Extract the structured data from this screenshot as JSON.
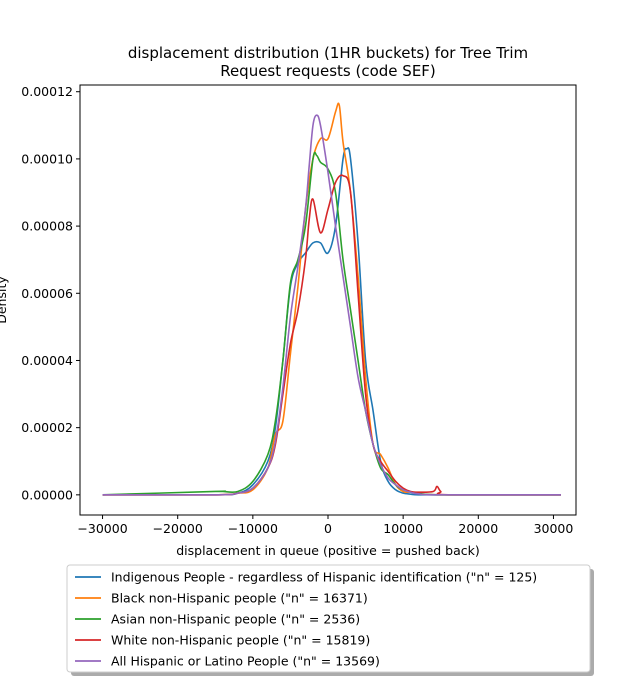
{
  "chart_data": {
    "type": "line",
    "title_line1": "displacement distribution (1HR buckets) for Tree Trim",
    "title_line2": "Request requests (code SEF)",
    "xlabel": "displacement in queue (positive = pushed back)",
    "ylabel": "Density",
    "xlim": [
      -33000,
      33000
    ],
    "ylim": [
      -6e-06,
      0.000122
    ],
    "xticks": [
      -30000,
      -20000,
      -10000,
      0,
      10000,
      20000,
      30000
    ],
    "xtick_labels": [
      "−30000",
      "−20000",
      "−10000",
      "0",
      "10000",
      "20000",
      "30000"
    ],
    "yticks": [
      0,
      2e-05,
      4e-05,
      6e-05,
      8e-05,
      0.0001,
      0.00012
    ],
    "ytick_labels": [
      "0.00000",
      "0.00002",
      "0.00004",
      "0.00006",
      "0.00008",
      "0.00010",
      "0.00012"
    ],
    "legend_position": "below the axes",
    "series": [
      {
        "name": "Indigenous People - regardless of Hispanic identification (\"n\" = 125)",
        "color": "#1f77b4",
        "x": [
          -30000,
          -15000,
          -12000,
          -10000,
          -8000,
          -7000,
          -6000,
          -5000,
          -4000,
          -3000,
          -2000,
          -1000,
          0,
          1000,
          2000,
          2500,
          3000,
          4000,
          5000,
          6000,
          7000,
          8000,
          9000,
          10000,
          11000,
          12000,
          15000,
          31000
        ],
        "y": [
          0,
          0,
          5e-07,
          3e-06,
          1e-05,
          2e-05,
          4e-05,
          6.2e-05,
          6.9e-05,
          7.2e-05,
          7.5e-05,
          7.5e-05,
          7.2e-05,
          8e-05,
          0.0001,
          0.000103,
          0.0001,
          7.5e-05,
          4e-05,
          2.5e-05,
          1e-05,
          4e-06,
          1.5e-06,
          5e-07,
          2e-07,
          0,
          0,
          0
        ]
      },
      {
        "name": "Black non-Hispanic people (\"n\" = 16371)",
        "color": "#ff7f0e",
        "x": [
          -30000,
          -15000,
          -12000,
          -10000,
          -8000,
          -7000,
          -6000,
          -5000,
          -4000,
          -3000,
          -2000,
          -1000,
          0,
          1000,
          1500,
          2000,
          3000,
          4000,
          5000,
          6000,
          7000,
          8000,
          9000,
          10000,
          11000,
          12000,
          15000,
          31000
        ],
        "y": [
          0,
          0,
          5e-07,
          1.5e-06,
          8e-06,
          1.8e-05,
          2.2e-05,
          4.2e-05,
          6.2e-05,
          8.5e-05,
          0.0001,
          0.000106,
          0.000106,
          0.000114,
          0.000116,
          0.000105,
          9e-05,
          6.5e-05,
          3.5e-05,
          1.5e-05,
          1.2e-05,
          8e-06,
          3e-06,
          1e-06,
          8e-07,
          5e-07,
          0,
          0
        ]
      },
      {
        "name": "Asian non-Hispanic people (\"n\" = 2536)",
        "color": "#2ca02c",
        "x": [
          -30000,
          -15000,
          -14000,
          -12000,
          -10000,
          -8000,
          -7000,
          -6000,
          -5000,
          -4000,
          -3000,
          -2000,
          -1500,
          -1000,
          0,
          1000,
          2000,
          3000,
          4000,
          5000,
          6000,
          7000,
          8000,
          9000,
          10000,
          12000,
          15000,
          31000
        ],
        "y": [
          0,
          1e-06,
          1e-06,
          1e-06,
          4e-06,
          1.2e-05,
          2.2e-05,
          4e-05,
          6.3e-05,
          7e-05,
          8e-05,
          0.0001,
          0.000101,
          9.9e-05,
          9.7e-05,
          9e-05,
          7e-05,
          5.5e-05,
          4e-05,
          2.5e-05,
          1.5e-05,
          8e-06,
          6e-06,
          3e-06,
          1.5e-06,
          5e-07,
          0,
          0
        ]
      },
      {
        "name": "White non-Hispanic people (\"n\" = 15819)",
        "color": "#d62728",
        "x": [
          -30000,
          -15000,
          -12000,
          -10000,
          -8000,
          -7000,
          -6000,
          -5000,
          -4000,
          -3000,
          -2500,
          -2000,
          -1000,
          0,
          1000,
          2000,
          3000,
          4000,
          5000,
          6000,
          7000,
          8000,
          9000,
          10000,
          11000,
          12000,
          14000,
          14500,
          15000,
          16000,
          31000
        ],
        "y": [
          0,
          0,
          5e-07,
          2e-06,
          8e-06,
          1.5e-05,
          3e-05,
          4.5e-05,
          5.5e-05,
          7e-05,
          8.2e-05,
          8.8e-05,
          7.8e-05,
          8.5e-05,
          9.3e-05,
          9.5e-05,
          9e-05,
          6e-05,
          3e-05,
          1.5e-05,
          1e-05,
          7e-06,
          4e-06,
          2e-06,
          1e-06,
          8e-07,
          1e-06,
          2.5e-06,
          1e-06,
          0,
          0
        ]
      },
      {
        "name": "All Hispanic or Latino People (\"n\" = 13569)",
        "color": "#9467bd",
        "x": [
          -30000,
          -15000,
          -12000,
          -10000,
          -8000,
          -7000,
          -6000,
          -5000,
          -4000,
          -3000,
          -2500,
          -2000,
          -1500,
          -1000,
          0,
          1000,
          2000,
          3000,
          4000,
          5000,
          6000,
          7000,
          8000,
          9000,
          10000,
          11000,
          12000,
          15000,
          31000
        ],
        "y": [
          0,
          0,
          5e-07,
          2e-06,
          8e-06,
          1.6e-05,
          3.2e-05,
          5.3e-05,
          6.8e-05,
          8.5e-05,
          9.8e-05,
          0.00011,
          0.000113,
          0.00011,
          9.6e-05,
          8e-05,
          6.5e-05,
          5e-05,
          3.5e-05,
          2.5e-05,
          1.5e-05,
          9e-06,
          5e-06,
          3e-06,
          1.5e-06,
          8e-07,
          3e-07,
          0,
          0
        ]
      }
    ]
  }
}
